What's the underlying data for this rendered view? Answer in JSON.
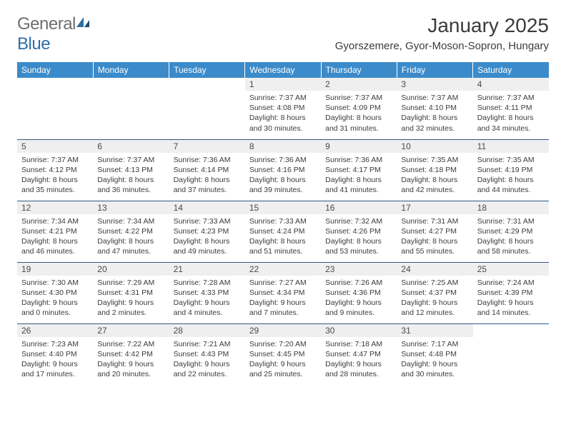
{
  "logo": {
    "general": "General",
    "blue": "Blue"
  },
  "title": "January 2025",
  "location": "Gyorszemere, Gyor-Moson-Sopron, Hungary",
  "colors": {
    "header_bg": "#3b8bca",
    "header_fg": "#ffffff",
    "daynum_bg": "#efefef",
    "border": "#2f5b82",
    "text": "#3b3b3b",
    "logo_gray": "#6e6e6e",
    "logo_blue": "#2f6fa8"
  },
  "weekdays": [
    "Sunday",
    "Monday",
    "Tuesday",
    "Wednesday",
    "Thursday",
    "Friday",
    "Saturday"
  ],
  "weeks": [
    [
      null,
      null,
      null,
      {
        "n": "1",
        "sr": "7:37 AM",
        "ss": "4:08 PM",
        "dl": "8 hours and 30 minutes."
      },
      {
        "n": "2",
        "sr": "7:37 AM",
        "ss": "4:09 PM",
        "dl": "8 hours and 31 minutes."
      },
      {
        "n": "3",
        "sr": "7:37 AM",
        "ss": "4:10 PM",
        "dl": "8 hours and 32 minutes."
      },
      {
        "n": "4",
        "sr": "7:37 AM",
        "ss": "4:11 PM",
        "dl": "8 hours and 34 minutes."
      }
    ],
    [
      {
        "n": "5",
        "sr": "7:37 AM",
        "ss": "4:12 PM",
        "dl": "8 hours and 35 minutes."
      },
      {
        "n": "6",
        "sr": "7:37 AM",
        "ss": "4:13 PM",
        "dl": "8 hours and 36 minutes."
      },
      {
        "n": "7",
        "sr": "7:36 AM",
        "ss": "4:14 PM",
        "dl": "8 hours and 37 minutes."
      },
      {
        "n": "8",
        "sr": "7:36 AM",
        "ss": "4:16 PM",
        "dl": "8 hours and 39 minutes."
      },
      {
        "n": "9",
        "sr": "7:36 AM",
        "ss": "4:17 PM",
        "dl": "8 hours and 41 minutes."
      },
      {
        "n": "10",
        "sr": "7:35 AM",
        "ss": "4:18 PM",
        "dl": "8 hours and 42 minutes."
      },
      {
        "n": "11",
        "sr": "7:35 AM",
        "ss": "4:19 PM",
        "dl": "8 hours and 44 minutes."
      }
    ],
    [
      {
        "n": "12",
        "sr": "7:34 AM",
        "ss": "4:21 PM",
        "dl": "8 hours and 46 minutes."
      },
      {
        "n": "13",
        "sr": "7:34 AM",
        "ss": "4:22 PM",
        "dl": "8 hours and 47 minutes."
      },
      {
        "n": "14",
        "sr": "7:33 AM",
        "ss": "4:23 PM",
        "dl": "8 hours and 49 minutes."
      },
      {
        "n": "15",
        "sr": "7:33 AM",
        "ss": "4:24 PM",
        "dl": "8 hours and 51 minutes."
      },
      {
        "n": "16",
        "sr": "7:32 AM",
        "ss": "4:26 PM",
        "dl": "8 hours and 53 minutes."
      },
      {
        "n": "17",
        "sr": "7:31 AM",
        "ss": "4:27 PM",
        "dl": "8 hours and 55 minutes."
      },
      {
        "n": "18",
        "sr": "7:31 AM",
        "ss": "4:29 PM",
        "dl": "8 hours and 58 minutes."
      }
    ],
    [
      {
        "n": "19",
        "sr": "7:30 AM",
        "ss": "4:30 PM",
        "dl": "9 hours and 0 minutes."
      },
      {
        "n": "20",
        "sr": "7:29 AM",
        "ss": "4:31 PM",
        "dl": "9 hours and 2 minutes."
      },
      {
        "n": "21",
        "sr": "7:28 AM",
        "ss": "4:33 PM",
        "dl": "9 hours and 4 minutes."
      },
      {
        "n": "22",
        "sr": "7:27 AM",
        "ss": "4:34 PM",
        "dl": "9 hours and 7 minutes."
      },
      {
        "n": "23",
        "sr": "7:26 AM",
        "ss": "4:36 PM",
        "dl": "9 hours and 9 minutes."
      },
      {
        "n": "24",
        "sr": "7:25 AM",
        "ss": "4:37 PM",
        "dl": "9 hours and 12 minutes."
      },
      {
        "n": "25",
        "sr": "7:24 AM",
        "ss": "4:39 PM",
        "dl": "9 hours and 14 minutes."
      }
    ],
    [
      {
        "n": "26",
        "sr": "7:23 AM",
        "ss": "4:40 PM",
        "dl": "9 hours and 17 minutes."
      },
      {
        "n": "27",
        "sr": "7:22 AM",
        "ss": "4:42 PM",
        "dl": "9 hours and 20 minutes."
      },
      {
        "n": "28",
        "sr": "7:21 AM",
        "ss": "4:43 PM",
        "dl": "9 hours and 22 minutes."
      },
      {
        "n": "29",
        "sr": "7:20 AM",
        "ss": "4:45 PM",
        "dl": "9 hours and 25 minutes."
      },
      {
        "n": "30",
        "sr": "7:18 AM",
        "ss": "4:47 PM",
        "dl": "9 hours and 28 minutes."
      },
      {
        "n": "31",
        "sr": "7:17 AM",
        "ss": "4:48 PM",
        "dl": "9 hours and 30 minutes."
      },
      null
    ]
  ]
}
